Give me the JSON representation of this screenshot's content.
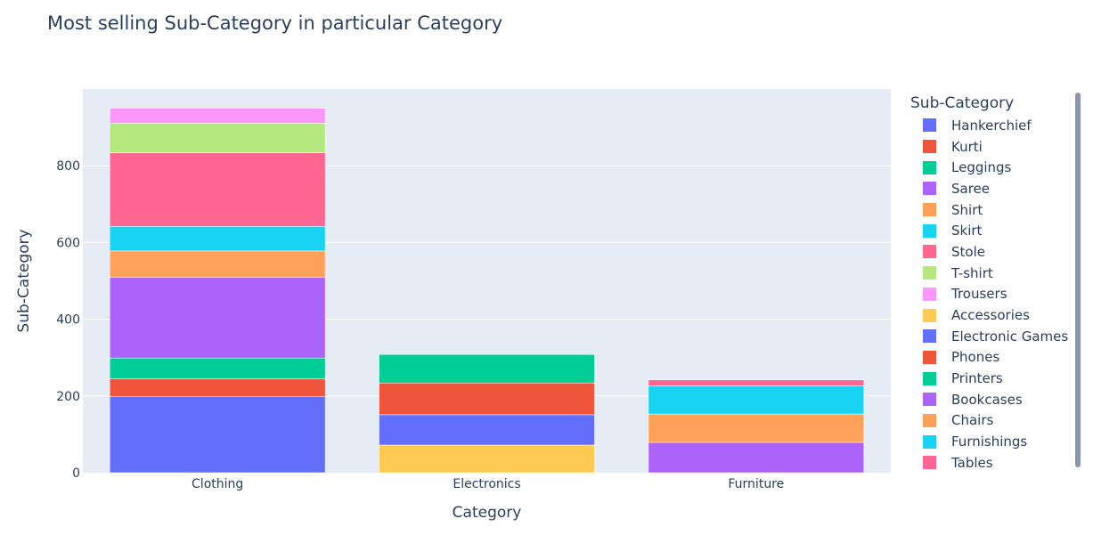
{
  "chart_data": {
    "type": "bar",
    "barmode": "stack",
    "title": "Most selling Sub-Category in particular Category",
    "xlabel": "Category",
    "ylabel": "Sub-Category",
    "categories": [
      "Clothing",
      "Electronics",
      "Furniture"
    ],
    "ylim": [
      0,
      1000
    ],
    "yticks": [
      0,
      200,
      400,
      600,
      800
    ],
    "grid": true,
    "legend_title": "Sub-Category",
    "legend_position": "right",
    "series": [
      {
        "name": "Hankerchief",
        "color": "#636efa",
        "values": [
          198,
          0,
          0
        ]
      },
      {
        "name": "Kurti",
        "color": "#ef553b",
        "values": [
          47,
          0,
          0
        ]
      },
      {
        "name": "Leggings",
        "color": "#00cc96",
        "values": [
          54,
          0,
          0
        ]
      },
      {
        "name": "Saree",
        "color": "#ab63fa",
        "values": [
          210,
          0,
          0
        ]
      },
      {
        "name": "Shirt",
        "color": "#ffa15a",
        "values": [
          69,
          0,
          0
        ]
      },
      {
        "name": "Skirt",
        "color": "#19d3f3",
        "values": [
          64,
          0,
          0
        ]
      },
      {
        "name": "Stole",
        "color": "#ff6692",
        "values": [
          192,
          0,
          0
        ]
      },
      {
        "name": "T-shirt",
        "color": "#b6e880",
        "values": [
          77,
          0,
          0
        ]
      },
      {
        "name": "Trousers",
        "color": "#ff97ff",
        "values": [
          39,
          0,
          0
        ]
      },
      {
        "name": "Accessories",
        "color": "#fecb52",
        "values": [
          0,
          72,
          0
        ]
      },
      {
        "name": "Electronic Games",
        "color": "#636efa",
        "values": [
          0,
          79,
          0
        ]
      },
      {
        "name": "Phones",
        "color": "#ef553b",
        "values": [
          0,
          83,
          0
        ]
      },
      {
        "name": "Printers",
        "color": "#00cc96",
        "values": [
          0,
          74,
          0
        ]
      },
      {
        "name": "Bookcases",
        "color": "#ab63fa",
        "values": [
          0,
          0,
          79
        ]
      },
      {
        "name": "Chairs",
        "color": "#ffa15a",
        "values": [
          0,
          0,
          74
        ]
      },
      {
        "name": "Furnishings",
        "color": "#19d3f3",
        "values": [
          0,
          0,
          73
        ]
      },
      {
        "name": "Tables",
        "color": "#ff6692",
        "values": [
          0,
          0,
          16
        ]
      }
    ]
  },
  "colors": {
    "plot_background": "#e5ecf6",
    "gridline": "#ffffff",
    "text": "#2a3f5f",
    "scrollbar": "#8a96ab"
  }
}
